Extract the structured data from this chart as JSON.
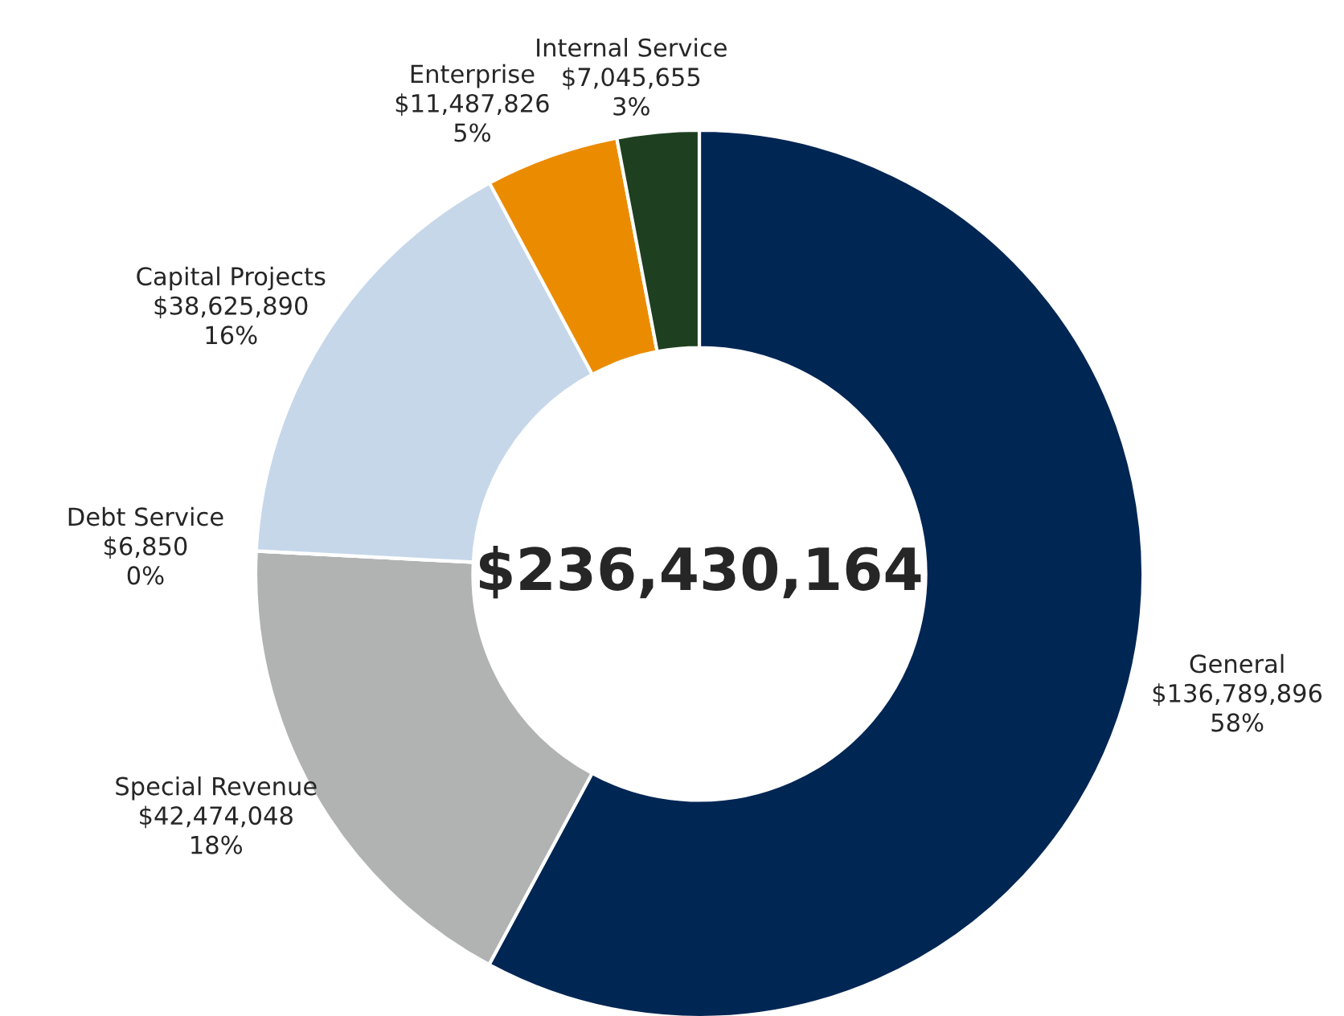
{
  "chart_data": {
    "type": "donut",
    "categories": [
      "General",
      "Special Revenue",
      "Debt Service",
      "Capital Projects",
      "Enterprise",
      "Internal Service"
    ],
    "values": [
      136789896,
      42474048,
      6850,
      38625890,
      11487826,
      7045655
    ],
    "value_labels": [
      "$136,789,896\n58%",
      "$42,474,048\n18%",
      "$6,850\n0%",
      "$38,625,890\n16%",
      "$11,487,826\n5%",
      "$7,045,655\n3%"
    ],
    "colors": [
      "#002654",
      "#b0b3b2",
      "#7f7f7f",
      "#c6d7ea",
      "#eb8c00",
      "#1e4020"
    ],
    "annotations": [
      "$236,430,164"
    ],
    "legend": false
  }
}
